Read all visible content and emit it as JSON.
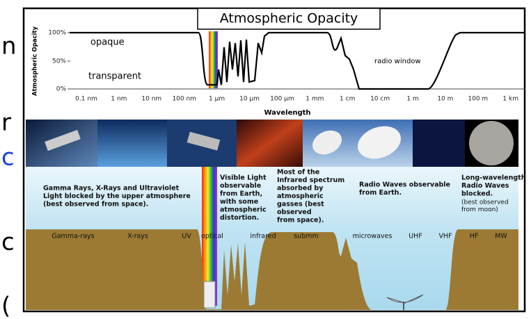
{
  "title": "Atmospheric Opacity",
  "opacity_chart": {
    "y_axis_label": "Atmospheric Opacity",
    "y_ticks": [
      "100%",
      "50%",
      "0%"
    ],
    "x_ticks": [
      "0.1 nm",
      "1 nm",
      "10 nm",
      "100 nm",
      "1 µm",
      "10 µm",
      "100 µm",
      "1 mm",
      "1 cm",
      "10 cm",
      "1 m",
      "10 m",
      "100 m",
      "1 km"
    ],
    "x_axis_label": "Wavelength",
    "annotations": [
      "opaque",
      "transparent",
      "radio window"
    ]
  },
  "captions": [
    [
      "Gamma Rays, X-Rays and Ultraviolet",
      "Light blocked by the upper atmosphere",
      "(best observed from space)."
    ],
    [
      "Visible Light",
      "observable",
      "from Earth,",
      "with some",
      "atmospheric",
      "distortion."
    ],
    [
      "Most of the",
      "Infrared spectrum",
      "absorbed by",
      "atmospheric",
      "gasses (best",
      "observed",
      "from space)."
    ],
    [
      "Radio Waves observable",
      "from Earth."
    ],
    [
      "Long-wavelength",
      "Radio Waves",
      "blocked."
    ]
  ],
  "moon_note": [
    "(best observed",
    "from moon)"
  ],
  "bands": [
    "Gamma-rays",
    "X-rays",
    "UV",
    "optical",
    "infrared",
    "submm",
    "microwaves",
    "UHF",
    "VHF",
    "HF",
    "MW"
  ],
  "edge_fragments": [
    "n",
    "r",
    "c",
    "c",
    "("
  ]
}
